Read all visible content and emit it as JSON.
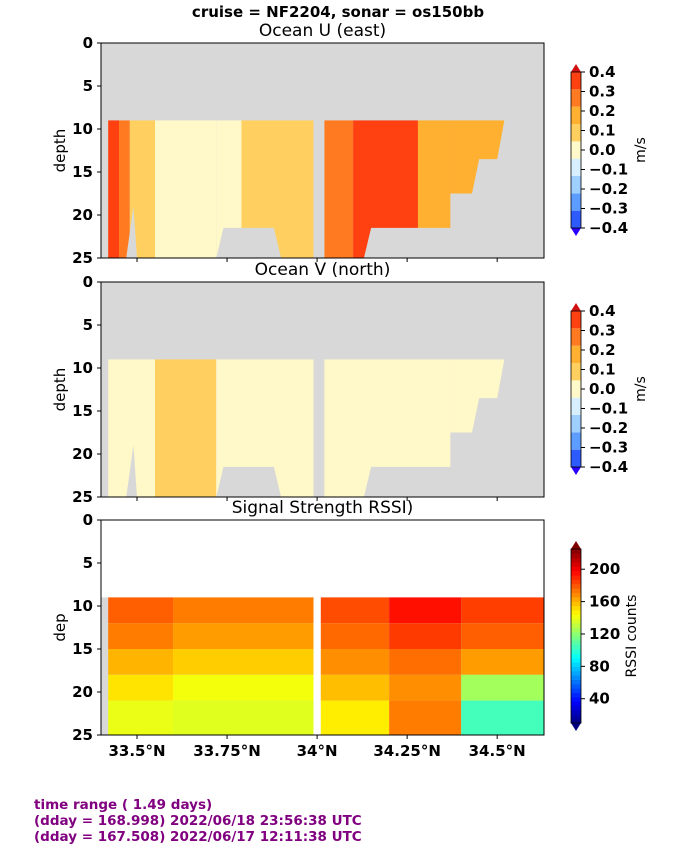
{
  "suptitle": "cruise = NF2204,  sonar = os150bb",
  "footer": {
    "line1": "time range ( 1.49 days)",
    "line2": "(dday = 168.998) 2022/06/18 23:56:38 UTC",
    "line3": "(dday = 167.508) 2022/06/17 12:11:38 UTC"
  },
  "colors": {
    "nodata": "#d8d8d8",
    "divergent_levels": [
      "#2a00ff",
      "#2d5bff",
      "#5c9dff",
      "#9dcfff",
      "#d8efff",
      "#fff8c8",
      "#ffd060",
      "#ffb030",
      "#ff7a20",
      "#ff4010",
      "#d01010"
    ],
    "rssi_colormap": "jet"
  },
  "chart_data": [
    {
      "type": "heatmap",
      "title": "Ocean U (east)",
      "xlabel": "",
      "ylabel": "depth",
      "xlim": [
        33.4,
        34.63
      ],
      "ylim": [
        25,
        0
      ],
      "yticks": [
        "0",
        "5",
        "10",
        "15",
        "20",
        "25"
      ],
      "xticks": [],
      "valid_depth_top": 9,
      "colorbar": {
        "label": "m/s",
        "min": -0.4,
        "max": 0.4,
        "ticks": [
          "0.4",
          "0.3",
          "0.2",
          "0.1",
          "0.0",
          "−0.1",
          "−0.2",
          "−0.3",
          "−0.4"
        ]
      },
      "columns": [
        {
          "lat_start": 33.42,
          "lat_end": 33.45,
          "u": 0.35
        },
        {
          "lat_start": 33.45,
          "lat_end": 33.48,
          "u": 0.22
        },
        {
          "lat_start": 33.48,
          "lat_end": 33.55,
          "u": 0.08
        },
        {
          "lat_start": 33.55,
          "lat_end": 33.72,
          "u": 0.02
        },
        {
          "lat_start": 33.72,
          "lat_end": 33.79,
          "u": -0.03
        },
        {
          "lat_start": 33.79,
          "lat_end": 33.99,
          "u": 0.04
        },
        {
          "lat_start": 34.02,
          "lat_end": 34.1,
          "u": 0.27
        },
        {
          "lat_start": 34.1,
          "lat_end": 34.28,
          "u": 0.32
        },
        {
          "lat_start": 34.28,
          "lat_end": 34.38,
          "u": 0.18
        },
        {
          "lat_start": 34.38,
          "lat_end": 34.52,
          "u": 0.12
        }
      ]
    },
    {
      "type": "heatmap",
      "title": "Ocean V (north)",
      "xlabel": "",
      "ylabel": "depth",
      "xlim": [
        33.4,
        34.63
      ],
      "ylim": [
        25,
        0
      ],
      "yticks": [
        "0",
        "5",
        "10",
        "15",
        "20",
        "25"
      ],
      "xticks": [],
      "valid_depth_top": 9,
      "colorbar": {
        "label": "m/s",
        "min": -0.4,
        "max": 0.4,
        "ticks": [
          "0.4",
          "0.3",
          "0.2",
          "0.1",
          "0.0",
          "−0.1",
          "−0.2",
          "−0.3",
          "−0.4"
        ]
      },
      "columns": [
        {
          "lat_start": 33.42,
          "lat_end": 33.55,
          "v": 0.03
        },
        {
          "lat_start": 33.55,
          "lat_end": 33.72,
          "v": 0.04
        },
        {
          "lat_start": 33.72,
          "lat_end": 33.99,
          "v": -0.02
        },
        {
          "lat_start": 34.02,
          "lat_end": 34.38,
          "v": -0.03
        },
        {
          "lat_start": 34.38,
          "lat_end": 34.52,
          "v": 0.02
        }
      ]
    },
    {
      "type": "heatmap",
      "title": "Signal Strength RSSI)",
      "xlabel": "",
      "ylabel": "dep",
      "xlim": [
        33.4,
        34.63
      ],
      "ylim": [
        25,
        0
      ],
      "yticks": [
        "0",
        "5",
        "10",
        "15",
        "20",
        "25"
      ],
      "xticks": [
        "33.5°N",
        "33.75°N",
        "34°N",
        "34.25°N",
        "34.5°N"
      ],
      "xtick_values": [
        33.5,
        33.75,
        34.0,
        34.25,
        34.5
      ],
      "valid_depth_top": 9,
      "colorbar": {
        "label": "RSSI counts",
        "min": 10,
        "max": 225,
        "ticks": [
          "200",
          "160",
          "120",
          "80",
          "40"
        ]
      },
      "depth_bins": [
        10.5,
        13.5,
        16.5,
        19.5,
        22.5
      ],
      "columns": [
        {
          "lat_start": 33.42,
          "lat_end": 33.6,
          "rssi": [
            178,
            172,
            160,
            150,
            140
          ]
        },
        {
          "lat_start": 33.6,
          "lat_end": 33.99,
          "rssi": [
            172,
            165,
            155,
            142,
            138
          ]
        },
        {
          "lat_start": 34.01,
          "lat_end": 34.2,
          "rssi": [
            182,
            176,
            168,
            158,
            148
          ]
        },
        {
          "lat_start": 34.2,
          "lat_end": 34.4,
          "rssi": [
            195,
            186,
            175,
            168,
            172
          ]
        },
        {
          "lat_start": 34.4,
          "lat_end": 34.63,
          "rssi": [
            185,
            178,
            165,
            125,
            105
          ]
        }
      ]
    }
  ]
}
